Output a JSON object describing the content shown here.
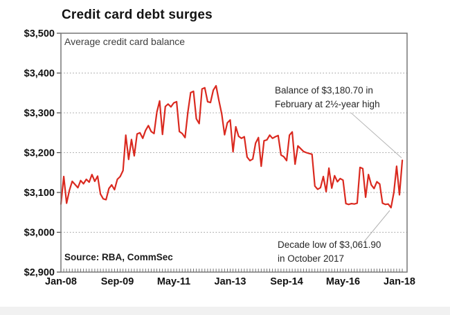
{
  "chart_data": {
    "type": "line",
    "title": "Credit card debt surges",
    "subtitle": "Average credit card balance",
    "source": "Source: RBA, CommSec",
    "series_name": "Average credit card balance",
    "x_unit": "month",
    "x_range": [
      "Jan-2008",
      "Feb-2018"
    ],
    "ylim": [
      2900,
      3500
    ],
    "grid": "horizontal-dotted",
    "legend": "none",
    "line_color": "#da291f",
    "y_ticks": [
      {
        "label": "$3,500",
        "value": 3500
      },
      {
        "label": "$3,400",
        "value": 3400
      },
      {
        "label": "$3,300",
        "value": 3300
      },
      {
        "label": "$3,200",
        "value": 3200
      },
      {
        "label": "$3,100",
        "value": 3100
      },
      {
        "label": "$3,000",
        "value": 3000
      },
      {
        "label": "$2,900",
        "value": 2900
      }
    ],
    "x_ticks": [
      {
        "label": "Jan-08",
        "month": 0
      },
      {
        "label": "Sep-09",
        "month": 20
      },
      {
        "label": "May-11",
        "month": 40
      },
      {
        "label": "Jan-13",
        "month": 60
      },
      {
        "label": "Sep-14",
        "month": 80
      },
      {
        "label": "May-16",
        "month": 100
      },
      {
        "label": "Jan-18",
        "month": 120
      }
    ],
    "values": [
      3071,
      3140,
      3073,
      3105,
      3128,
      3120,
      3112,
      3130,
      3122,
      3133,
      3126,
      3145,
      3128,
      3141,
      3096,
      3084,
      3082,
      3110,
      3119,
      3107,
      3133,
      3140,
      3155,
      3244,
      3183,
      3233,
      3192,
      3247,
      3250,
      3236,
      3256,
      3268,
      3253,
      3248,
      3302,
      3330,
      3246,
      3316,
      3322,
      3315,
      3325,
      3328,
      3253,
      3248,
      3238,
      3302,
      3351,
      3354,
      3285,
      3273,
      3360,
      3363,
      3328,
      3326,
      3357,
      3368,
      3331,
      3297,
      3245,
      3275,
      3282,
      3202,
      3265,
      3241,
      3236,
      3240,
      3189,
      3180,
      3184,
      3224,
      3238,
      3166,
      3230,
      3232,
      3244,
      3236,
      3240,
      3243,
      3194,
      3190,
      3180,
      3244,
      3252,
      3171,
      3217,
      3210,
      3203,
      3200,
      3198,
      3196,
      3116,
      3108,
      3112,
      3140,
      3102,
      3161,
      3111,
      3142,
      3127,
      3135,
      3131,
      3072,
      3070,
      3072,
      3071,
      3073,
      3163,
      3160,
      3088,
      3145,
      3119,
      3110,
      3127,
      3121,
      3073,
      3070,
      3071,
      3061.9,
      3100,
      3166,
      3094,
      3180.7
    ],
    "annotations": [
      {
        "line1": "Balance of $3,180.70 in",
        "line2": "February at 2½-year high",
        "target": "Feb-2018",
        "target_value": 3180.7
      },
      {
        "line1": "Decade low of $3,061.90",
        "line2": "in October 2017",
        "target": "Oct-2017",
        "target_value": 3061.9
      }
    ]
  }
}
